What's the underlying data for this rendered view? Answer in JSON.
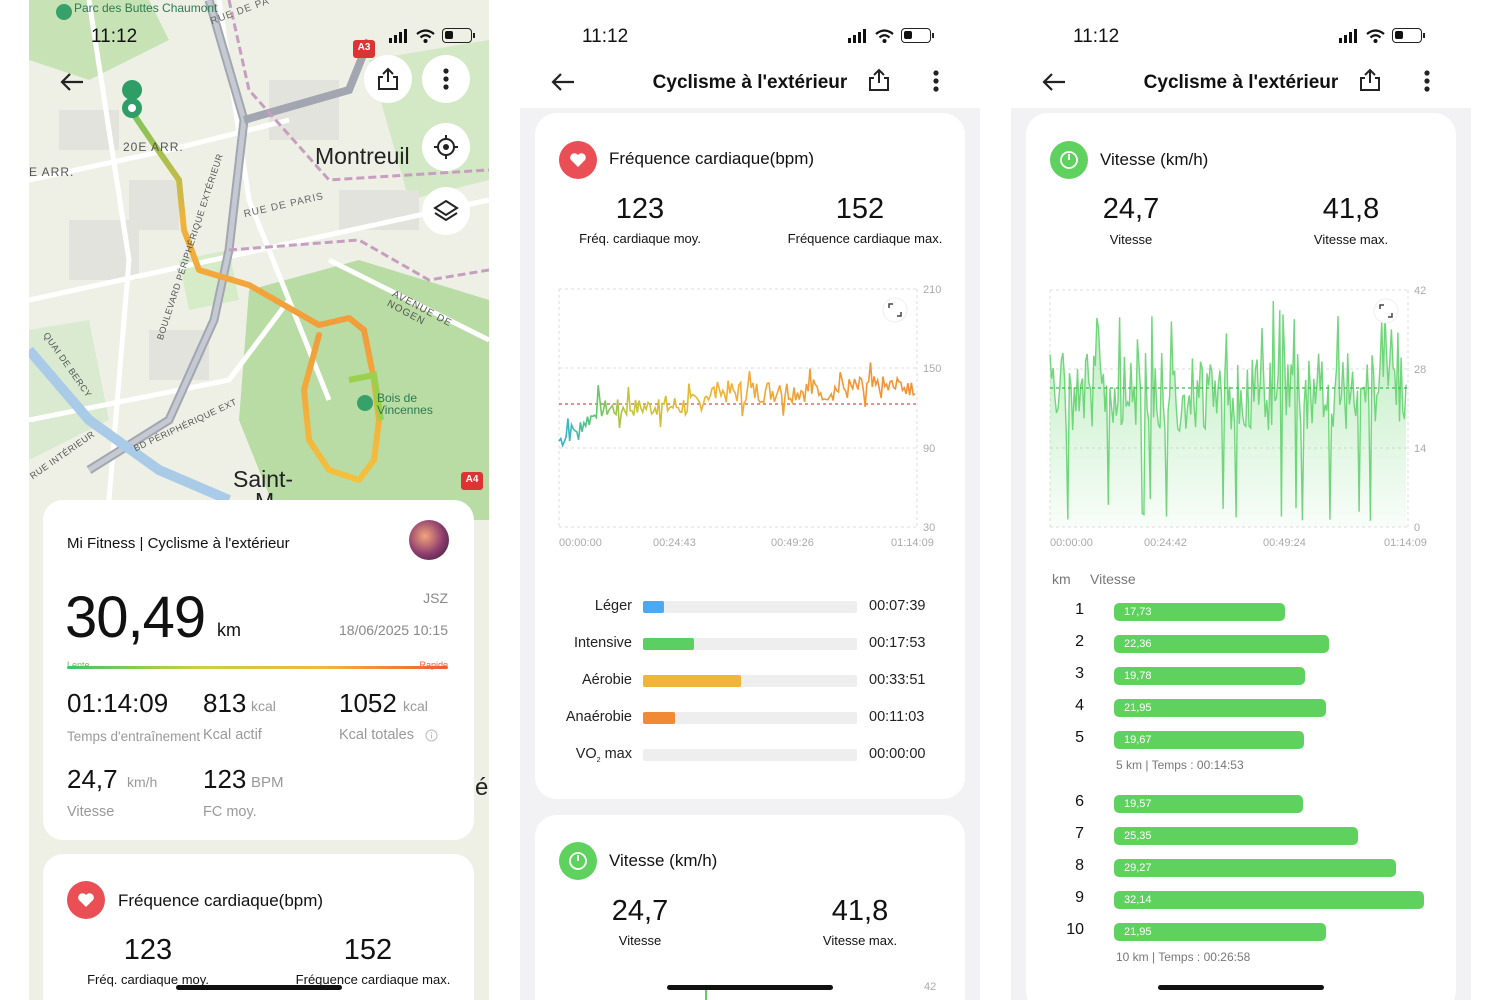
{
  "status": {
    "time": "11:12"
  },
  "colors": {
    "heart": "#ea4f55",
    "speed": "#5ed15e",
    "route_slow": "#3cc46b",
    "route_fast": "#ef5a35"
  },
  "map": {
    "labels": {
      "parc": "Parc des Buttes Chaumont",
      "arr20": "20E ARR.",
      "arr": "E ARR.",
      "montreuil": "Montreuil",
      "rue_de_paris": "RUE DE PARIS",
      "rue_de_pa": "RUE DE PA",
      "avenue_nogent": "AVENUE DE NOGEN",
      "boulevard_peripherique": "BOULEVARD PÉRIPHÉRIQUE EXTÉRIEUR",
      "bd_peripherique": "BD PÉRIPHÉRIQUE EXT",
      "quai_bercy": "QUAI DE BERCY",
      "rue_interieur": "RUE INTÉRIEUR",
      "bois_vincennes": "Bois de Vincennes",
      "saint": "Saint-",
      "m": "M",
      "a3": "A3",
      "a4": "A4",
      "e_char": "é"
    }
  },
  "summary": {
    "app_title": "Mi Fitness | Cyclisme à l'extérieur",
    "distance": "30,49",
    "distance_unit": "km",
    "user": "JSZ",
    "date": "18/06/2025 10:15",
    "legend_slow": "Lente",
    "legend_fast": "Rapide",
    "duration": "01:14:09",
    "duration_label": "Temps d'entraînement",
    "kcal_active": "813",
    "kcal_unit": "kcal",
    "kcal_active_label": "Kcal actif",
    "kcal_total": "1052",
    "kcal_total_label": "Kcal totales",
    "speed": "24,7",
    "speed_unit": "km/h",
    "speed_label": "Vitesse",
    "hr": "123",
    "hr_unit": "BPM",
    "hr_label": "FC moy."
  },
  "hr_card": {
    "title": "Fréquence cardiaque(bpm)",
    "avg": "123",
    "avg_label": "Fréq. cardiaque moy.",
    "max": "152",
    "max_label": "Fréquence cardiaque max."
  },
  "nav": {
    "title": "Cyclisme à l'extérieur"
  },
  "hr_chart": {
    "yticks": [
      "210",
      "150",
      "90",
      "30"
    ],
    "xticks": [
      "00:00:00",
      "00:24:43",
      "00:49:26",
      "01:14:09"
    ]
  },
  "zones": [
    {
      "label": "Léger",
      "time": "00:07:39",
      "fraction": 0.1,
      "color": "#4aa9f0"
    },
    {
      "label": "Intensive",
      "time": "00:17:53",
      "fraction": 0.24,
      "color": "#5ccf62"
    },
    {
      "label": "Aérobie",
      "time": "00:33:51",
      "fraction": 0.456,
      "color": "#f3b43a"
    },
    {
      "label": "Anaérobie",
      "time": "00:11:03",
      "fraction": 0.15,
      "color": "#f08a35"
    },
    {
      "label": "VO",
      "sub": "2",
      "suffix": " max",
      "time": "00:00:00",
      "fraction": 0,
      "color": "#e55"
    }
  ],
  "speed_card": {
    "title": "Vitesse (km/h)",
    "avg": "24,7",
    "avg_label": "Vitesse",
    "max": "41,8",
    "max_label": "Vitesse max."
  },
  "speed_chart": {
    "yticks": [
      "42",
      "28",
      "14",
      "0"
    ],
    "xticks": [
      "00:00:00",
      "00:24:42",
      "00:49:24",
      "01:14:09"
    ]
  },
  "speed_bottom_tick": "42",
  "splits": {
    "col_km": "km",
    "col_speed": "Vitesse",
    "rows": [
      {
        "km": "1",
        "speed": "17,73"
      },
      {
        "km": "2",
        "speed": "22,36"
      },
      {
        "km": "3",
        "speed": "19,78"
      },
      {
        "km": "4",
        "speed": "21,95"
      },
      {
        "km": "5",
        "speed": "19,67"
      },
      {
        "km": "6",
        "speed": "19,57"
      },
      {
        "km": "7",
        "speed": "25,35"
      },
      {
        "km": "8",
        "speed": "29,27"
      },
      {
        "km": "9",
        "speed": "32,14"
      },
      {
        "km": "10",
        "speed": "21,95"
      }
    ],
    "summary5": "5 km | Temps : 00:14:53",
    "summary10": "10 km | Temps : 00:26:58"
  }
}
